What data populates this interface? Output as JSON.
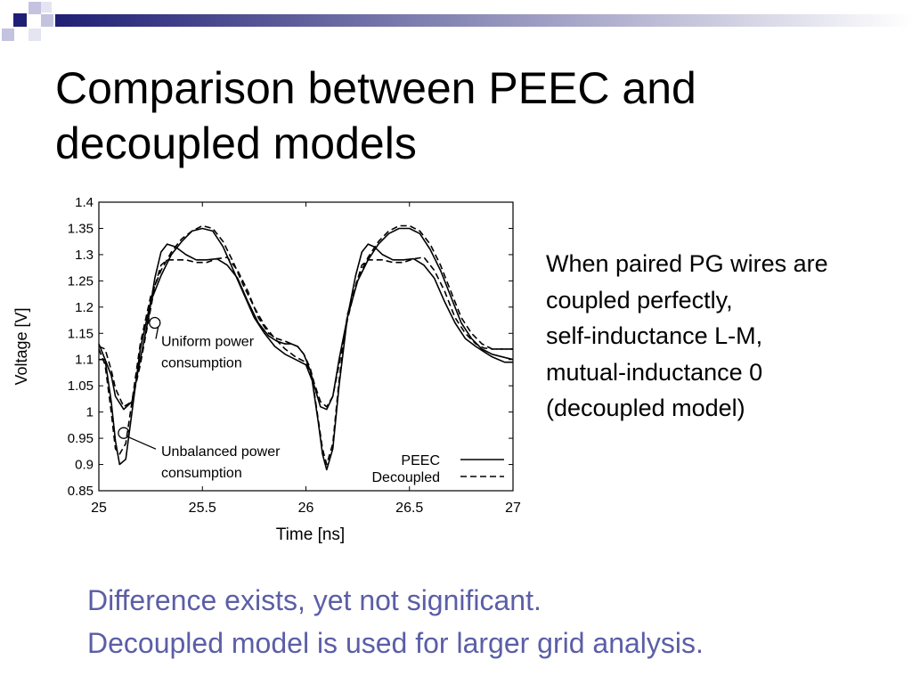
{
  "slide": {
    "title_lines": [
      "Comparison between PEEC and",
      "decoupled models"
    ],
    "note_lines": [
      "When paired PG wires are",
      "coupled perfectly,",
      "self-inductance  L-M,",
      "mutual-inductance 0",
      "(decoupled model)"
    ],
    "conclusion_lines": [
      "Difference exists, yet not significant.",
      "Decoupled model is used for larger grid analysis."
    ],
    "colors": {
      "accent": "#5b5ea6",
      "deco_dark": "#1f1f75",
      "deco_light": "#c3c3e0"
    }
  },
  "chart_data": {
    "type": "line",
    "xlabel": "Time [ns]",
    "ylabel": "Voltage [V]",
    "xlim": [
      25,
      27
    ],
    "ylim": [
      0.85,
      1.4
    ],
    "xticks": [
      25,
      25.5,
      26,
      26.5,
      27
    ],
    "xtick_labels": [
      "25",
      "25.5",
      "26",
      "26.5",
      "27"
    ],
    "yticks": [
      0.85,
      0.9,
      0.95,
      1,
      1.05,
      1.1,
      1.15,
      1.2,
      1.25,
      1.3,
      1.35,
      1.4
    ],
    "ytick_labels": [
      "0.85",
      "0.9",
      "0.95",
      "1",
      "1.05",
      "1.1",
      "1.15",
      "1.2",
      "1.25",
      "1.3",
      "1.35",
      "1.4"
    ],
    "grid": false,
    "legend": {
      "position": "bottom-right",
      "entries": [
        {
          "label": "PEEC",
          "style": "solid"
        },
        {
          "label": "Decoupled",
          "style": "dashed"
        }
      ]
    },
    "annotations": [
      {
        "lines": [
          "Uniform power",
          "consumption"
        ],
        "x": 25.27,
        "y": 1.17
      },
      {
        "lines": [
          "Unbalanced power",
          "consumption"
        ],
        "x": 25.12,
        "y": 0.96
      }
    ],
    "series": [
      {
        "name": "PEEC",
        "case": "Uniform power consumption",
        "style": "solid",
        "x": [
          25.0,
          25.03,
          25.06,
          25.08,
          25.12,
          25.16,
          25.2,
          25.24,
          25.27,
          25.3,
          25.33,
          25.37,
          25.42,
          25.47,
          25.52,
          25.57,
          25.62,
          25.67,
          25.72,
          25.77,
          25.82,
          25.86,
          25.9,
          25.93,
          25.96,
          25.99,
          26.02,
          26.04,
          26.07,
          26.1,
          26.13,
          26.16,
          26.2,
          26.24,
          26.27,
          26.3,
          26.33,
          26.37,
          26.42,
          26.47,
          26.52,
          26.57,
          26.62,
          26.67,
          26.72,
          26.77,
          26.82,
          26.86,
          26.9,
          26.93,
          26.96,
          27.0
        ],
        "y": [
          1.1,
          1.1,
          1.07,
          1.03,
          1.005,
          1.02,
          1.1,
          1.18,
          1.255,
          1.305,
          1.32,
          1.315,
          1.3,
          1.29,
          1.29,
          1.292,
          1.28,
          1.255,
          1.21,
          1.17,
          1.145,
          1.135,
          1.13,
          1.13,
          1.125,
          1.11,
          1.08,
          1.05,
          1.01,
          1.005,
          1.03,
          1.1,
          1.18,
          1.26,
          1.305,
          1.32,
          1.315,
          1.3,
          1.29,
          1.29,
          1.292,
          1.28,
          1.255,
          1.21,
          1.17,
          1.14,
          1.125,
          1.115,
          1.105,
          1.1,
          1.095,
          1.095
        ]
      },
      {
        "name": "Decoupled",
        "case": "Uniform power consumption",
        "style": "dashed",
        "x": [
          25.0,
          25.03,
          25.06,
          25.08,
          25.12,
          25.16,
          25.2,
          25.24,
          25.27,
          25.3,
          25.33,
          25.37,
          25.42,
          25.47,
          25.52,
          25.57,
          25.62,
          25.67,
          25.72,
          25.77,
          25.82,
          25.86,
          25.9,
          25.93,
          25.96,
          25.99,
          26.02,
          26.04,
          26.07,
          26.1,
          26.13,
          26.16,
          26.2,
          26.24,
          26.27,
          26.3,
          26.33,
          26.37,
          26.42,
          26.47,
          26.52,
          26.57,
          26.62,
          26.67,
          26.72,
          26.77,
          26.82,
          26.86,
          26.9,
          26.93,
          26.96,
          27.0
        ],
        "y": [
          1.125,
          1.12,
          1.08,
          1.045,
          1.01,
          1.02,
          1.09,
          1.175,
          1.24,
          1.28,
          1.29,
          1.29,
          1.29,
          1.285,
          1.285,
          1.292,
          1.295,
          1.27,
          1.23,
          1.18,
          1.15,
          1.14,
          1.135,
          1.13,
          1.125,
          1.11,
          1.085,
          1.055,
          1.02,
          1.01,
          1.03,
          1.09,
          1.175,
          1.24,
          1.28,
          1.29,
          1.29,
          1.29,
          1.285,
          1.285,
          1.292,
          1.295,
          1.27,
          1.23,
          1.18,
          1.15,
          1.13,
          1.122,
          1.12,
          1.12,
          1.12,
          1.12
        ]
      },
      {
        "name": "PEEC",
        "case": "Unbalanced power consumption",
        "style": "solid",
        "x": [
          25.0,
          25.03,
          25.06,
          25.08,
          25.1,
          25.13,
          25.16,
          25.2,
          25.25,
          25.3,
          25.35,
          25.4,
          25.45,
          25.5,
          25.55,
          25.6,
          25.65,
          25.7,
          25.75,
          25.8,
          25.85,
          25.9,
          25.95,
          26.0,
          26.03,
          26.06,
          26.08,
          26.1,
          26.13,
          26.16,
          26.2,
          26.25,
          26.3,
          26.35,
          26.4,
          26.45,
          26.5,
          26.55,
          26.6,
          26.65,
          26.7,
          26.75,
          26.8,
          26.85,
          26.9,
          26.95,
          27.0
        ],
        "y": [
          1.13,
          1.1,
          1.02,
          0.945,
          0.9,
          0.91,
          1.0,
          1.12,
          1.21,
          1.26,
          1.3,
          1.325,
          1.345,
          1.35,
          1.345,
          1.315,
          1.27,
          1.225,
          1.18,
          1.15,
          1.125,
          1.11,
          1.1,
          1.09,
          1.06,
          0.98,
          0.92,
          0.89,
          0.93,
          1.05,
          1.18,
          1.25,
          1.29,
          1.32,
          1.34,
          1.35,
          1.35,
          1.34,
          1.31,
          1.27,
          1.22,
          1.17,
          1.14,
          1.12,
          1.11,
          1.105,
          1.1
        ]
      },
      {
        "name": "Decoupled",
        "case": "Unbalanced power consumption",
        "style": "dashed",
        "x": [
          25.0,
          25.03,
          25.06,
          25.08,
          25.1,
          25.13,
          25.16,
          25.2,
          25.25,
          25.3,
          25.35,
          25.4,
          25.45,
          25.5,
          25.55,
          25.6,
          25.65,
          25.7,
          25.75,
          25.8,
          25.85,
          25.9,
          25.95,
          26.0,
          26.03,
          26.06,
          26.08,
          26.1,
          26.13,
          26.16,
          26.2,
          26.25,
          26.3,
          26.35,
          26.4,
          26.45,
          26.5,
          26.55,
          26.6,
          26.65,
          26.7,
          26.75,
          26.8,
          26.85,
          26.9,
          26.95,
          27.0
        ],
        "y": [
          1.12,
          1.09,
          1.0,
          0.93,
          0.92,
          0.94,
          1.02,
          1.13,
          1.22,
          1.27,
          1.305,
          1.33,
          1.345,
          1.355,
          1.35,
          1.325,
          1.285,
          1.24,
          1.2,
          1.165,
          1.14,
          1.12,
          1.105,
          1.095,
          1.065,
          0.985,
          0.93,
          0.9,
          0.94,
          1.06,
          1.185,
          1.255,
          1.295,
          1.325,
          1.345,
          1.355,
          1.355,
          1.345,
          1.32,
          1.28,
          1.23,
          1.18,
          1.15,
          1.13,
          1.12,
          1.12,
          1.12
        ]
      }
    ]
  }
}
